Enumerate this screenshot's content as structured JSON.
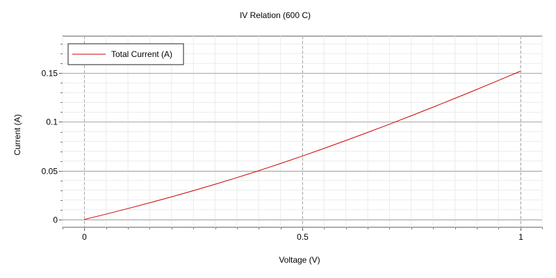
{
  "chart_data": {
    "type": "line",
    "title": "IV Relation (600 C)",
    "xlabel": "Voltage (V)",
    "ylabel": "Current (A)",
    "xlim": [
      -0.05,
      1.05
    ],
    "ylim": [
      -0.008,
      0.188
    ],
    "xticks": [
      0,
      0.5,
      1
    ],
    "xtick_labels": [
      "0",
      "0.5",
      "1"
    ],
    "yticks": [
      0,
      0.05,
      0.1,
      0.15
    ],
    "ytick_labels": [
      "0",
      "0.05",
      "0.1",
      "0.15"
    ],
    "grid": true,
    "legend_position": "top-left",
    "series": [
      {
        "name": "Total Current (A)",
        "color": "#cc0000",
        "x": [
          0,
          0.05,
          0.1,
          0.15,
          0.2,
          0.25,
          0.3,
          0.35,
          0.4,
          0.45,
          0.5,
          0.55,
          0.6,
          0.65,
          0.7,
          0.75,
          0.8,
          0.85,
          0.9,
          0.95,
          1.0
        ],
        "y": [
          0,
          0.0055,
          0.0112,
          0.0171,
          0.0232,
          0.0295,
          0.0361,
          0.0429,
          0.05,
          0.0574,
          0.065,
          0.0729,
          0.081,
          0.0893,
          0.0977,
          0.1064,
          0.1152,
          0.1242,
          0.1333,
          0.1426,
          0.152
        ]
      }
    ]
  }
}
